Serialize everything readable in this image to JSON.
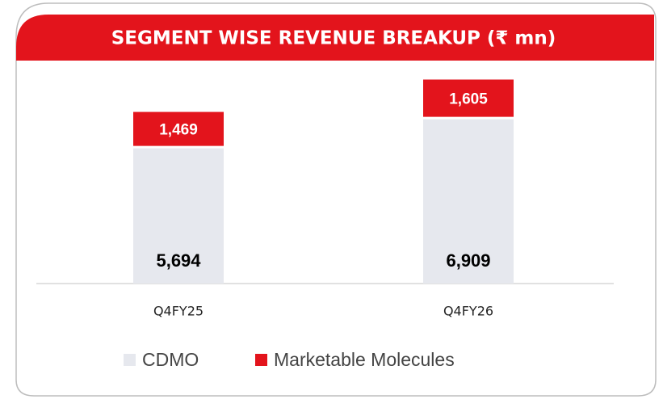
{
  "chart_data": {
    "type": "stacked_bar",
    "title": "SEGMENT WISE REVENUE BREAKUP (₹ mn)",
    "categories": [
      "Q4FY25",
      "Q4FY26"
    ],
    "series": [
      {
        "name": "CDMO",
        "color": "#e6e8ee",
        "values": [
          5694,
          6909
        ],
        "value_labels": [
          "5,694",
          "6,909"
        ]
      },
      {
        "name": "Marketable Molecules",
        "color": "#e3141c",
        "values": [
          1469,
          1605
        ],
        "value_labels": [
          "1,469",
          "1,605"
        ]
      }
    ],
    "ylim": [
      0,
      8800
    ]
  }
}
